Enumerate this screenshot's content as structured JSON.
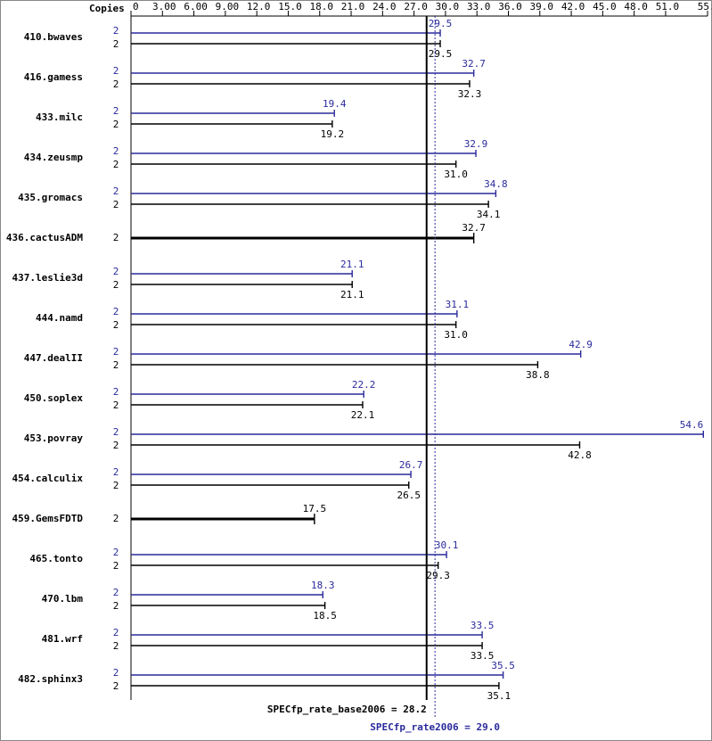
{
  "chart_data": {
    "type": "bar",
    "orientation": "horizontal",
    "copies_label": "Copies",
    "categories": [
      "410.bwaves",
      "416.gamess",
      "433.milc",
      "434.zeusmp",
      "435.gromacs",
      "436.cactusADM",
      "437.leslie3d",
      "444.namd",
      "447.dealII",
      "450.soplex",
      "453.povray",
      "454.calculix",
      "459.GemsFDTD",
      "465.tonto",
      "470.lbm",
      "481.wrf",
      "482.sphinx3"
    ],
    "series": [
      {
        "color": "#2a2a9c",
        "values": [
          29.5,
          32.7,
          19.4,
          32.9,
          34.8,
          null,
          21.1,
          31.1,
          42.9,
          22.2,
          54.6,
          26.7,
          null,
          30.1,
          18.3,
          33.5,
          35.5
        ],
        "value_labels": [
          "29.5",
          "32.7",
          "19.4",
          "32.9",
          "34.8",
          null,
          "21.1",
          "31.1",
          "42.9",
          "22.2",
          "54.6",
          "26.7",
          null,
          "30.1",
          "18.3",
          "33.5",
          "35.5"
        ],
        "copies": [
          2,
          2,
          2,
          2,
          2,
          null,
          2,
          2,
          2,
          2,
          2,
          2,
          null,
          2,
          2,
          2,
          2
        ]
      },
      {
        "color": "#000000",
        "values": [
          29.5,
          32.3,
          19.2,
          31.0,
          34.1,
          32.7,
          21.1,
          31.0,
          38.8,
          22.1,
          42.8,
          26.5,
          17.5,
          29.3,
          18.5,
          33.5,
          35.1
        ],
        "value_labels": [
          "29.5",
          "32.3",
          "19.2",
          "31.0",
          "34.1",
          "32.7",
          "21.1",
          "31.0",
          "38.8",
          "22.1",
          "42.8",
          "26.5",
          "17.5",
          "29.3",
          "18.5",
          "33.5",
          "35.1"
        ],
        "copies": [
          2,
          2,
          2,
          2,
          2,
          2,
          2,
          2,
          2,
          2,
          2,
          2,
          2,
          2,
          2,
          2,
          2
        ]
      }
    ],
    "reference_lines": [
      {
        "label": "SPECfp_rate_base2006 = 28.2",
        "value": 28.2,
        "color": "#000000",
        "style": "solid"
      },
      {
        "label": "SPECfp_rate2006 = 29.0",
        "value": 29.0,
        "color": "#2a2a9c",
        "style": "dotted"
      }
    ],
    "xlim": [
      0,
      55
    ],
    "xticks": [
      0,
      {
        "value": 3,
        "label": "3.00"
      },
      {
        "value": 6,
        "label": "6.00"
      },
      {
        "value": 9,
        "label": "9.00"
      },
      {
        "value": 12,
        "label": "12.0"
      },
      {
        "value": 15,
        "label": "15.0"
      },
      {
        "value": 18,
        "label": "18.0"
      },
      {
        "value": 21,
        "label": "21.0"
      },
      {
        "value": 24,
        "label": "24.0"
      },
      {
        "value": 27,
        "label": "27.0"
      },
      {
        "value": 30,
        "label": "30.0"
      },
      {
        "value": 33,
        "label": "33.0"
      },
      {
        "value": 36,
        "label": "36.0"
      },
      {
        "value": 39,
        "label": "39.0"
      },
      {
        "value": 42,
        "label": "42.0"
      },
      {
        "value": 45,
        "label": "45.0"
      },
      {
        "value": 48,
        "label": "48.0"
      },
      {
        "value": 51,
        "label": "51.0"
      },
      {
        "value": 55,
        "label": "55.0"
      }
    ]
  }
}
